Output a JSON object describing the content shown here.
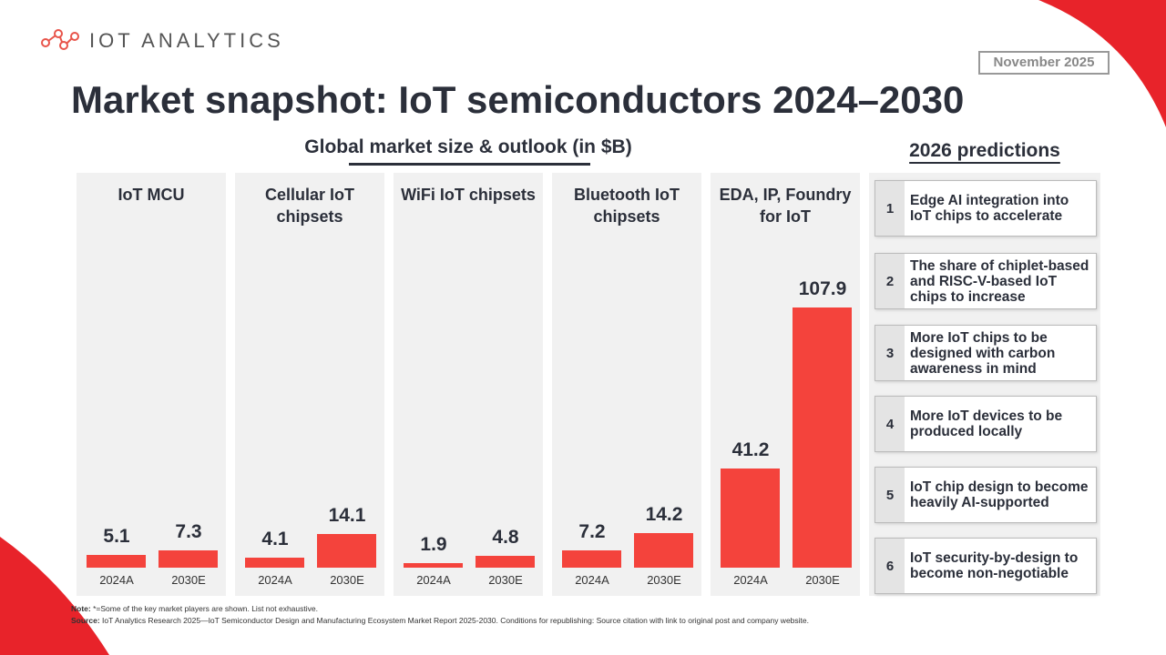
{
  "brand": "IOT ANALYTICS",
  "date": "November 2025",
  "title": "Market snapshot: IoT semiconductors 2024–2030",
  "subtitle": "Global market size & outlook (in $B)",
  "predictions": {
    "title": "2026 predictions",
    "items": [
      {
        "number": "1",
        "text": "Edge AI integration into IoT chips to accelerate"
      },
      {
        "number": "2",
        "text": "The share of chiplet-based and RISC-V-based IoT chips to increase"
      },
      {
        "number": "3",
        "text": "More IoT chips to be designed with carbon awareness in mind"
      },
      {
        "number": "4",
        "text": "More IoT devices to be produced locally"
      },
      {
        "number": "5",
        "text": "IoT chip design to become heavily AI-supported"
      },
      {
        "number": "6",
        "text": "IoT security-by-design to become non-negotiable"
      }
    ]
  },
  "note": {
    "label": "Note:",
    "text": "*=Some of the key market players are shown. List not exhaustive."
  },
  "source": {
    "label": "Source:",
    "text": "IoT Analytics Research 2025—IoT Semiconductor Design and Manufacturing Ecosystem Market Report 2025-2030. Conditions for republishing: Source citation with link to original post and company website."
  },
  "chart_data": [
    {
      "type": "bar",
      "title": "IoT MCU",
      "categories": [
        "2024A",
        "2030E"
      ],
      "values": [
        5.1,
        7.3
      ],
      "color": "#f4433c"
    },
    {
      "type": "bar",
      "title": "Cellular IoT chipsets",
      "categories": [
        "2024A",
        "2030E"
      ],
      "values": [
        4.1,
        14.1
      ],
      "color": "#f4433c"
    },
    {
      "type": "bar",
      "title": "WiFi IoT chipsets",
      "categories": [
        "2024A",
        "2030E"
      ],
      "values": [
        1.9,
        4.8
      ],
      "color": "#f4433c"
    },
    {
      "type": "bar",
      "title": "Bluetooth IoT chipsets",
      "categories": [
        "2024A",
        "2030E"
      ],
      "values": [
        7.2,
        14.2
      ],
      "color": "#f4433c"
    },
    {
      "type": "bar",
      "title": "EDA, IP, Foundry for IoT",
      "categories": [
        "2024A",
        "2030E"
      ],
      "values": [
        41.2,
        107.9
      ],
      "color": "#f4433c"
    }
  ]
}
